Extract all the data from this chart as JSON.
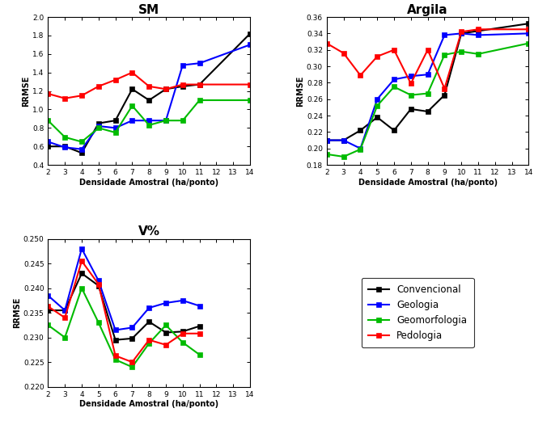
{
  "SM": {
    "title": "SM",
    "xlabel": "Densidade Amostral (ha/ponto)",
    "ylabel": "RRMSE",
    "xlim": [
      2,
      14
    ],
    "ylim": [
      0.4,
      2.0
    ],
    "yticks": [
      0.4,
      0.6,
      0.8,
      1.0,
      1.2,
      1.4,
      1.6,
      1.8,
      2.0
    ],
    "xticks": [
      2,
      3,
      4,
      5,
      6,
      7,
      8,
      9,
      10,
      11,
      12,
      13,
      14
    ],
    "Convencional": {
      "x": [
        2,
        3,
        4,
        5,
        6,
        7,
        8,
        9,
        10,
        11,
        14
      ],
      "y": [
        0.6,
        0.6,
        0.53,
        0.85,
        0.88,
        1.22,
        1.1,
        1.22,
        1.25,
        1.27,
        1.82
      ]
    },
    "Geologia": {
      "x": [
        2,
        3,
        4,
        5,
        6,
        7,
        8,
        9,
        10,
        11,
        14
      ],
      "y": [
        0.65,
        0.59,
        0.57,
        0.82,
        0.8,
        0.88,
        0.88,
        0.88,
        1.48,
        1.5,
        1.7
      ]
    },
    "Geomorfologia": {
      "x": [
        2,
        3,
        4,
        5,
        6,
        7,
        8,
        9,
        10,
        11,
        14
      ],
      "y": [
        0.88,
        0.7,
        0.65,
        0.8,
        0.75,
        1.04,
        0.83,
        0.88,
        0.88,
        1.1,
        1.1
      ]
    },
    "Pedologia": {
      "x": [
        2,
        3,
        4,
        5,
        6,
        7,
        8,
        9,
        10,
        11,
        14
      ],
      "y": [
        1.17,
        1.12,
        1.15,
        1.25,
        1.32,
        1.4,
        1.25,
        1.22,
        1.27,
        1.27,
        1.27
      ]
    }
  },
  "Argila": {
    "title": "Argila",
    "xlabel": "Densidade Amostral (ha/ponto)",
    "ylabel": "RRMSE",
    "xlim": [
      2,
      14
    ],
    "ylim": [
      0.18,
      0.36
    ],
    "yticks": [
      0.18,
      0.2,
      0.22,
      0.24,
      0.26,
      0.28,
      0.3,
      0.32,
      0.34,
      0.36
    ],
    "xticks": [
      2,
      3,
      4,
      5,
      6,
      7,
      8,
      9,
      10,
      11,
      12,
      13,
      14
    ],
    "Convencional": {
      "x": [
        2,
        3,
        4,
        5,
        6,
        7,
        8,
        9,
        10,
        11,
        14
      ],
      "y": [
        0.21,
        0.21,
        0.222,
        0.238,
        0.222,
        0.248,
        0.245,
        0.265,
        0.34,
        0.343,
        0.352
      ]
    },
    "Geologia": {
      "x": [
        2,
        3,
        4,
        5,
        6,
        7,
        8,
        9,
        10,
        11,
        14
      ],
      "y": [
        0.21,
        0.21,
        0.2,
        0.26,
        0.284,
        0.288,
        0.29,
        0.338,
        0.34,
        0.338,
        0.34
      ]
    },
    "Geomorfologia": {
      "x": [
        2,
        3,
        4,
        5,
        6,
        7,
        8,
        9,
        10,
        11,
        14
      ],
      "y": [
        0.193,
        0.19,
        0.199,
        0.252,
        0.275,
        0.265,
        0.267,
        0.314,
        0.318,
        0.315,
        0.328
      ]
    },
    "Pedologia": {
      "x": [
        2,
        3,
        4,
        5,
        6,
        7,
        8,
        9,
        10,
        11,
        14
      ],
      "y": [
        0.328,
        0.316,
        0.289,
        0.312,
        0.32,
        0.279,
        0.32,
        0.273,
        0.342,
        0.345,
        0.345
      ]
    }
  },
  "V%": {
    "title": "V%",
    "xlabel": "Densidade Amostral (ha/ponto)",
    "ylabel": "RRMSE",
    "xlim": [
      2,
      14
    ],
    "ylim": [
      0.22,
      0.25
    ],
    "yticks": [
      0.22,
      0.225,
      0.23,
      0.235,
      0.24,
      0.245,
      0.25
    ],
    "xticks": [
      2,
      3,
      4,
      5,
      6,
      7,
      8,
      9,
      10,
      11,
      12,
      13,
      14
    ],
    "Convencional": {
      "x": [
        2,
        3,
        4,
        5,
        6,
        7,
        8,
        9,
        10,
        11
      ],
      "y": [
        0.2355,
        0.2355,
        0.243,
        0.2405,
        0.2295,
        0.2298,
        0.2332,
        0.231,
        0.2312,
        0.2323
      ]
    },
    "Geologia": {
      "x": [
        2,
        3,
        4,
        5,
        6,
        7,
        8,
        9,
        10,
        11
      ],
      "y": [
        0.2385,
        0.2355,
        0.248,
        0.2415,
        0.2315,
        0.232,
        0.236,
        0.237,
        0.2375,
        0.2364
      ]
    },
    "Geomorfologia": {
      "x": [
        2,
        3,
        4,
        5,
        6,
        7,
        8,
        9,
        10,
        11
      ],
      "y": [
        0.2325,
        0.23,
        0.24,
        0.233,
        0.2255,
        0.224,
        0.2288,
        0.2325,
        0.229,
        0.2265
      ]
    },
    "Pedologia": {
      "x": [
        2,
        3,
        4,
        5,
        6,
        7,
        8,
        9,
        10,
        11
      ],
      "y": [
        0.2363,
        0.234,
        0.2455,
        0.2408,
        0.2263,
        0.225,
        0.2295,
        0.2285,
        0.2308,
        0.2308
      ]
    }
  },
  "colors": {
    "Convencional": "#000000",
    "Geologia": "#0000ff",
    "Geomorfologia": "#00bb00",
    "Pedologia": "#ff0000"
  },
  "legend_labels": [
    "Convencional",
    "Geologia",
    "Geomorfologia",
    "Pedologia"
  ],
  "background_color": "#ffffff",
  "linewidth": 1.5,
  "markersize": 4.5,
  "title_fontsize": 11,
  "label_fontsize": 7,
  "tick_fontsize": 6.5,
  "legend_fontsize": 8.5
}
